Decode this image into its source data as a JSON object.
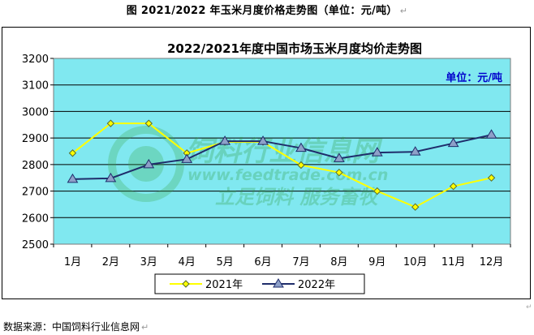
{
  "document": {
    "figure_caption": "图 2021/2022 年玉米月度价格走势图（单位：元/吨）",
    "paragraph_mark": "↵",
    "source_note": "数据来源：中国饲料行业信息网"
  },
  "watermark": {
    "cn_text": "饲料行业信息网",
    "url": "www.feedtrade.com.cn",
    "slogan": "立足饲料  服务畜牧"
  },
  "chart_data": {
    "type": "line",
    "title": "2022/2021年度中国市场玉米月度均价走势图",
    "unit_label": "单位：元/吨",
    "categories": [
      "1月",
      "2月",
      "3月",
      "4月",
      "5月",
      "6月",
      "7月",
      "8月",
      "9月",
      "10月",
      "11月",
      "12月"
    ],
    "ylim": [
      2500,
      3200
    ],
    "yticks": [
      2500,
      2600,
      2700,
      2800,
      2900,
      3000,
      3100,
      3200
    ],
    "grid": true,
    "legend_position": "bottom",
    "series": [
      {
        "name": "2021年",
        "color": "#ffff00",
        "marker": "diamond",
        "values": [
          2843,
          2955,
          2955,
          2843,
          2885,
          2885,
          2798,
          2770,
          2700,
          2640,
          2718,
          2750
        ]
      },
      {
        "name": "2022年",
        "color": "#1f2d6b",
        "marker": "triangle",
        "values": [
          2745,
          2748,
          2800,
          2820,
          2888,
          2888,
          2862,
          2823,
          2845,
          2848,
          2880,
          2912
        ]
      }
    ],
    "colors": {
      "plot_bg": "#80e8f0",
      "gridline": "#000000",
      "title": "#000000",
      "unit": "#0000cc"
    }
  }
}
